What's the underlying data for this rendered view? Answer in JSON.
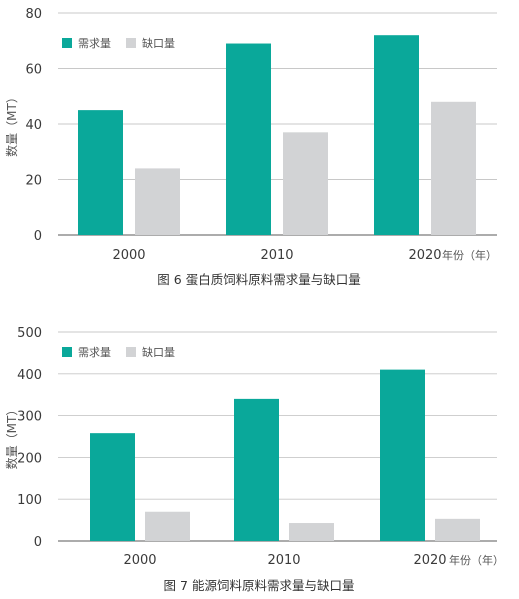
{
  "chart_data": [
    {
      "type": "bar",
      "categories": [
        "2000",
        "2010",
        "2020"
      ],
      "series": [
        {
          "name": "需求量",
          "values": [
            45,
            69,
            72
          ]
        },
        {
          "name": "缺口量",
          "values": [
            24,
            37,
            48
          ]
        }
      ],
      "ylabel": "数量（MT）",
      "xunit": "年份（年）",
      "ylim": [
        0,
        80
      ],
      "yticks": [
        0,
        20,
        40,
        60,
        80
      ],
      "grid": true,
      "legend_position": "top-left",
      "caption": "图 6 蛋白质饲料原料需求量与缺口量"
    },
    {
      "type": "bar",
      "categories": [
        "2000",
        "2010",
        "2020"
      ],
      "series": [
        {
          "name": "需求量",
          "values": [
            258,
            340,
            410
          ]
        },
        {
          "name": "缺口量",
          "values": [
            70,
            43,
            53
          ]
        }
      ],
      "ylabel": "数量（MT）",
      "xunit": "年份（年）",
      "ylim": [
        0,
        500
      ],
      "yticks": [
        0,
        100,
        200,
        300,
        400,
        500
      ],
      "grid": true,
      "legend_position": "top-left",
      "caption": "图 7 能源饲料原料需求量与缺口量"
    }
  ],
  "colors": {
    "demand": "#0aa89a",
    "gap": "#d2d3d5",
    "grid": "#c8c8c8",
    "axis": "#7a7a7a"
  }
}
